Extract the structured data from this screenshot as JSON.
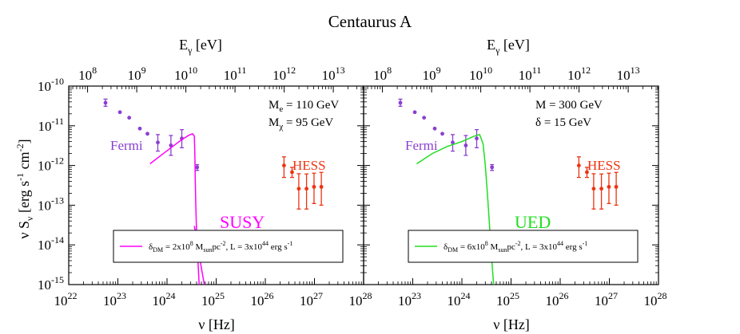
{
  "figure": {
    "title": "Centaurus A",
    "top_axis_label_main": "E",
    "top_axis_label_sub": "γ",
    "top_axis_label_tail": " [eV]",
    "bottom_axis_label": "ν [Hz]",
    "y_axis_label": "ν S",
    "y_axis_label_sub": "ν",
    "y_axis_label_tail": " [erg s",
    "y_axis_label_e1": "-1",
    "y_axis_label_mid": " cm",
    "y_axis_label_e2": "-2",
    "y_axis_label_end": "]"
  },
  "chart_data": [
    {
      "type": "scatter",
      "panel": "left",
      "xlabel": "ν [Hz]",
      "x2label": "Eγ [eV]",
      "ylabel": "ν Sν [erg s-1 cm-2]",
      "xlim": [
        1e+22,
        1e+28
      ],
      "ylim": [
        1e-15,
        1e-10
      ],
      "xscale": "log",
      "yscale": "log",
      "x_tick_exponents": [
        22,
        23,
        24,
        25,
        26,
        27,
        28
      ],
      "x2_tick_exponents": [
        8,
        9,
        10,
        11,
        12,
        13
      ],
      "y_tick_exponents": [
        -15,
        -14,
        -13,
        -12,
        -11,
        -10
      ],
      "annotations": [
        {
          "main": "M",
          "sub": "e",
          "rest": " = 110 GeV"
        },
        {
          "main": "M",
          "sub": "χ",
          "rest": " = 95 GeV"
        }
      ],
      "model_label": "SUSY",
      "model_color": "#ff00ff",
      "legend_position": "bottom",
      "legend": {
        "pre": "δ",
        "pre_sub": "DM",
        "eq": " = 2x10",
        "exp": "8",
        "mid": " M",
        "mid_sub": "sun",
        "pc": "pc",
        "pc_exp": "-2",
        "tail": ", L = 3x10",
        "l_exp": "44",
        "end": " erg s",
        "end_exp": "-1"
      },
      "series": [
        {
          "name": "Fermi",
          "color": "#8a3fd1",
          "points": [
            [
              5.6e+22,
              3.8e-11,
              7e-12,
              9e-12
            ],
            [
              1.1e+23,
              2.2e-11,
              0,
              0
            ],
            [
              1.7e+23,
              1.6e-11,
              0,
              0
            ],
            [
              2.8e+23,
              8.5e-12,
              0,
              0
            ],
            [
              4e+23,
              6.3e-12,
              0,
              0
            ],
            [
              6.5e+23,
              3.8e-12,
              1.5e-12,
              2.2e-12
            ],
            [
              1.2e+24,
              3.2e-12,
              1.4e-12,
              2.5e-12
            ],
            [
              2e+24,
              4.8e-12,
              2e-12,
              3.2e-12
            ],
            [
              4.1e+24,
              9e-13,
              1.5e-13,
              1.5e-13
            ]
          ]
        },
        {
          "name": "HESS",
          "color": "#ee3311",
          "points": [
            [
              2.4e+26,
              1e-12,
              5e-13,
              6.5e-13
            ],
            [
              3.5e+26,
              6.8e-13,
              1.8e-13,
              2.2e-13
            ],
            [
              4.8e+26,
              2.6e-13,
              1.8e-13,
              3.6e-13
            ],
            [
              6.9e+26,
              2.6e-13,
              1.8e-13,
              3.5e-13
            ],
            [
              9.8e+26,
              2.9e-13,
              1.8e-13,
              3.5e-13
            ],
            [
              1.38e+27,
              2.9e-13,
              1.9e-13,
              3.8e-13
            ]
          ]
        },
        {
          "name": "model",
          "color": "#ff00ff",
          "curve": [
            [
              4.5e+23,
              1.1e-12
            ],
            [
              8e+23,
              1.9e-12
            ],
            [
              1.3e+24,
              3e-12
            ],
            [
              2e+24,
              4.5e-12
            ],
            [
              2.8e+24,
              5.8e-12
            ],
            [
              3.3e+24,
              6.3e-12
            ],
            [
              3.6e+24,
              5.5e-12
            ],
            [
              3.68e+24,
              2e-12
            ],
            [
              3.75e+24,
              5e-13
            ],
            [
              3.85e+24,
              1e-13
            ],
            [
              4e+24,
              2e-14
            ],
            [
              4.3e+24,
              3e-15
            ],
            [
              4.6e+24,
              6e-16
            ]
          ],
          "secondary_curve": [
            [
              3.6e+24,
              3e-14
            ],
            [
              4.3e+24,
              8e-15
            ],
            [
              5.2e+24,
              2e-15
            ],
            [
              6.2e+24,
              6e-16
            ]
          ]
        }
      ]
    },
    {
      "type": "scatter",
      "panel": "right",
      "xlabel": "ν [Hz]",
      "x2label": "Eγ [eV]",
      "ylabel": "ν Sν [erg s-1 cm-2]",
      "xlim": [
        1e+22,
        1e+28
      ],
      "ylim": [
        1e-15,
        1e-10
      ],
      "xscale": "log",
      "yscale": "log",
      "x_tick_exponents": [
        23,
        24,
        25,
        26,
        27,
        28
      ],
      "x2_tick_exponents": [
        8,
        9,
        10,
        11,
        12,
        13
      ],
      "y_tick_exponents": [],
      "annotations": [
        {
          "main": "M",
          "sub": "",
          "rest": " = 300 GeV"
        },
        {
          "main": "δ",
          "sub": "",
          "rest": " = 15 GeV"
        }
      ],
      "model_label": "UED",
      "model_color": "#22dd22",
      "legend_position": "bottom",
      "legend": {
        "pre": "δ",
        "pre_sub": "DM",
        "eq": " = 6x10",
        "exp": "8",
        "mid": " M",
        "mid_sub": "sun",
        "pc": "pc",
        "pc_exp": "-2",
        "tail": ", L = 3x10",
        "l_exp": "44",
        "end": " erg s",
        "end_exp": "-1"
      },
      "series": [
        {
          "name": "Fermi",
          "color": "#8a3fd1",
          "points": [
            [
              5.6e+22,
              3.8e-11,
              7e-12,
              9e-12
            ],
            [
              1.1e+23,
              2.2e-11,
              0,
              0
            ],
            [
              1.7e+23,
              1.6e-11,
              0,
              0
            ],
            [
              2.8e+23,
              8.5e-12,
              0,
              0
            ],
            [
              4e+23,
              6.3e-12,
              0,
              0
            ],
            [
              6.5e+23,
              3.8e-12,
              1.5e-12,
              2.2e-12
            ],
            [
              1.2e+24,
              3.2e-12,
              1.4e-12,
              2.5e-12
            ],
            [
              2e+24,
              4.8e-12,
              2e-12,
              3.2e-12
            ],
            [
              4.1e+24,
              9e-13,
              1.5e-13,
              1.5e-13
            ]
          ]
        },
        {
          "name": "HESS",
          "color": "#ee3311",
          "points": [
            [
              2.4e+26,
              1e-12,
              5e-13,
              6.5e-13
            ],
            [
              3.5e+26,
              6.8e-13,
              1.8e-13,
              2.2e-13
            ],
            [
              4.8e+26,
              2.6e-13,
              1.8e-13,
              3.6e-13
            ],
            [
              6.9e+26,
              2.6e-13,
              1.8e-13,
              3.5e-13
            ],
            [
              9.8e+26,
              2.9e-13,
              1.8e-13,
              3.5e-13
            ],
            [
              1.38e+27,
              2.9e-13,
              1.9e-13,
              3.8e-13
            ]
          ]
        },
        {
          "name": "model",
          "color": "#22dd22",
          "curve": [
            [
              1.2e+23,
              1.1e-12
            ],
            [
              2.5e+23,
              2e-12
            ],
            [
              5e+23,
              3e-12
            ],
            [
              1e+24,
              4e-12
            ],
            [
              1.8e+24,
              5.5e-12
            ],
            [
              2.3e+24,
              6e-12
            ],
            [
              2.7e+24,
              3.5e-12
            ],
            [
              3e+24,
              1e-12
            ],
            [
              3.3e+24,
              2e-13
            ],
            [
              3.6e+24,
              4e-14
            ],
            [
              3.9e+24,
              8e-15
            ],
            [
              4.3e+24,
              1.5e-15
            ],
            [
              4.6e+24,
              6e-16
            ]
          ]
        }
      ]
    }
  ]
}
